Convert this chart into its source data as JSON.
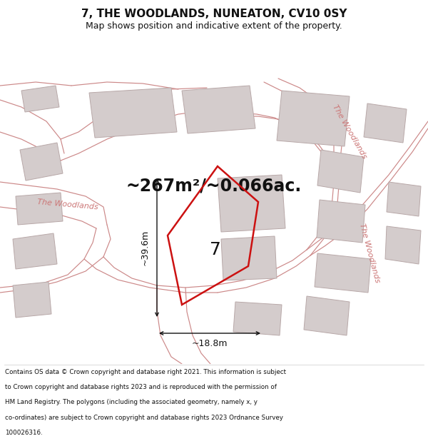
{
  "title": "7, THE WOODLANDS, NUNEATON, CV10 0SY",
  "subtitle": "Map shows position and indicative extent of the property.",
  "area_text": "~267m²/~0.066ac.",
  "width_label": "~18.8m",
  "height_label": "~39.6m",
  "number_label": "7",
  "footer_lines": [
    "Contains OS data © Crown copyright and database right 2021. This information is subject",
    "to Crown copyright and database rights 2023 and is reproduced with the permission of",
    "HM Land Registry. The polygons (including the associated geometry, namely x, y",
    "co-ordinates) are subject to Crown copyright and database rights 2023 Ordnance Survey",
    "100026316."
  ],
  "map_bg": "#f0ebe8",
  "building_color": "#d4cccc",
  "building_edge": "#b8a8a8",
  "road_line_color": "#d4999999",
  "plot_color": "#cc1111",
  "dim_color": "#111111",
  "road_label_color": "#cc7777",
  "title_fontsize": 11,
  "subtitle_fontsize": 9,
  "area_fontsize": 17,
  "number_fontsize": 18,
  "dim_fontsize": 9,
  "road_label_fontsize": 8
}
